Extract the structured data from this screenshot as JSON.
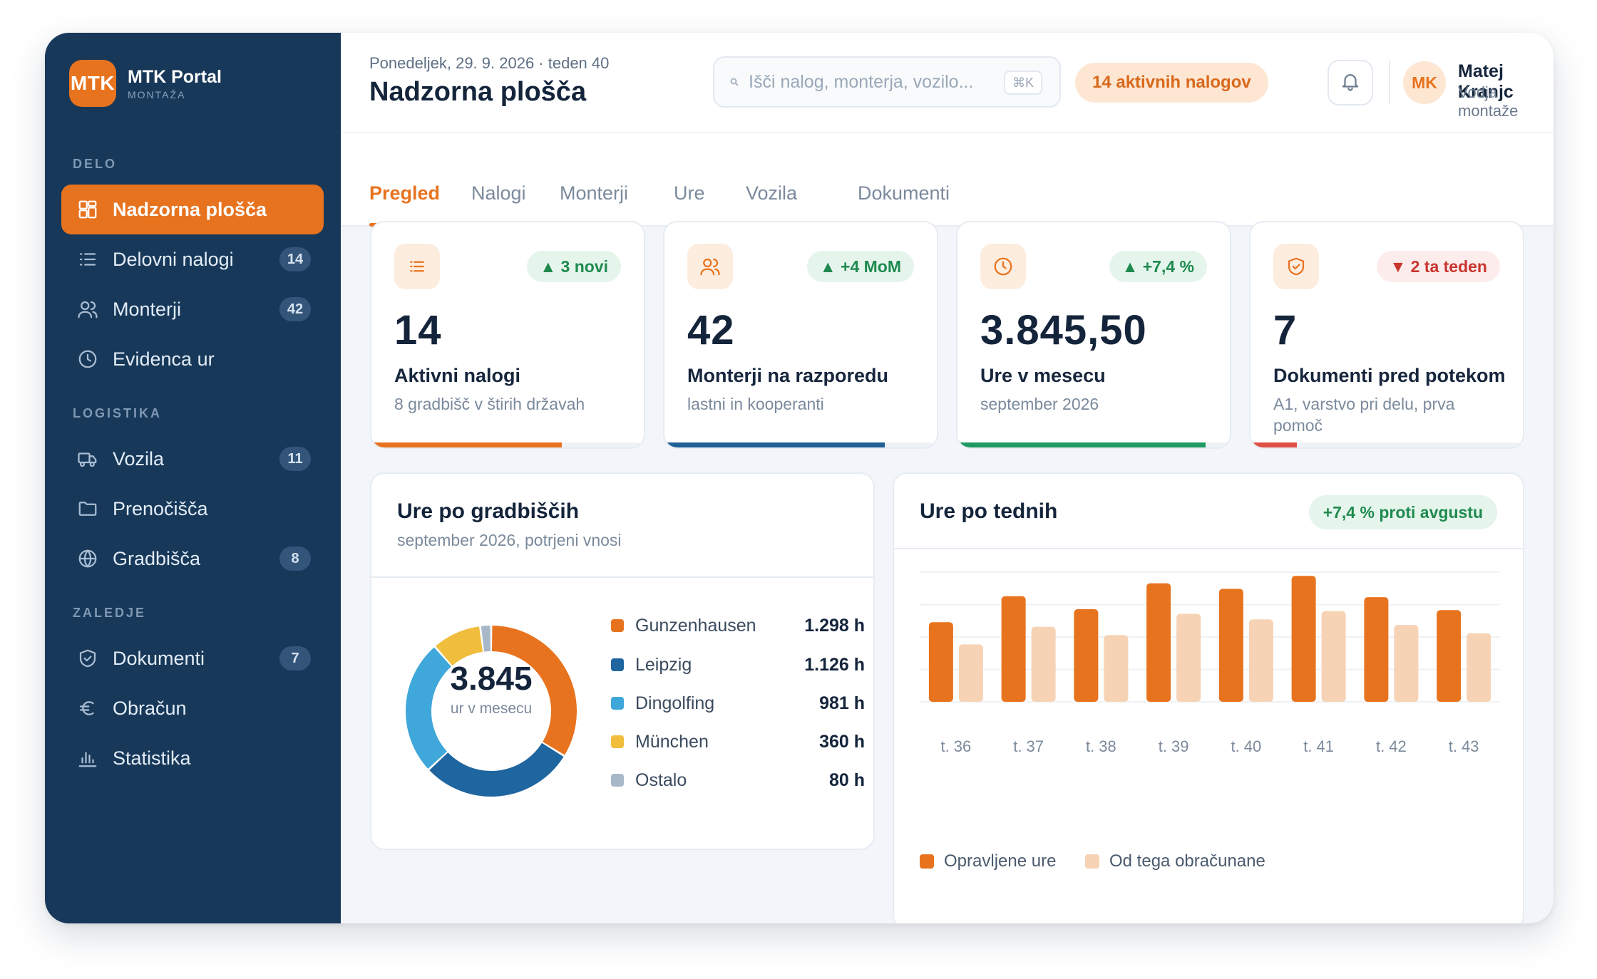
{
  "brand": {
    "logo_text": "MTK",
    "name": "MTK Portal",
    "subtitle": "MONTAŽA",
    "accent": "#e8731f",
    "sidebar_bg": "#173859"
  },
  "sidebar": {
    "sections": [
      {
        "label": "DELO"
      },
      {
        "label": "LOGISTIKA"
      },
      {
        "label": "ZALEDJE"
      }
    ],
    "items": [
      {
        "label": "Nadzorna plošča",
        "icon": "dashboard-icon",
        "badge": "",
        "active": true
      },
      {
        "label": "Delovni nalogi",
        "icon": "list-icon",
        "badge": "14"
      },
      {
        "label": "Monterji",
        "icon": "users-icon",
        "badge": "42"
      },
      {
        "label": "Evidenca ur",
        "icon": "clock-icon",
        "badge": ""
      },
      {
        "label": "Vozila",
        "icon": "truck-icon",
        "badge": "11"
      },
      {
        "label": "Prenočišča",
        "icon": "folder-icon",
        "badge": ""
      },
      {
        "label": "Gradbišča",
        "icon": "globe-icon",
        "badge": "8"
      },
      {
        "label": "Dokumenti",
        "icon": "shield-icon",
        "badge": "7"
      },
      {
        "label": "Obračun",
        "icon": "euro-icon",
        "badge": ""
      },
      {
        "label": "Statistika",
        "icon": "bar-chart-icon",
        "badge": ""
      }
    ]
  },
  "header": {
    "date_line": "Ponedeljek, 29. 9. 2026 · teden 40",
    "title": "Nadzorna plošča",
    "search_placeholder": "Išči nalog, monterja, vozilo...",
    "search_shortcut": "⌘K",
    "active_orders_pill": "14 aktivnih nalogov",
    "user_initials": "MK",
    "user_name": "Matej Kranjc",
    "user_role": "Vodja montaže"
  },
  "tabs": [
    {
      "label": "Pregled",
      "active": true
    },
    {
      "label": "Nalogi"
    },
    {
      "label": "Monterji"
    },
    {
      "label": "Ure"
    },
    {
      "label": "Vozila"
    },
    {
      "label": "Dokumenti"
    }
  ],
  "kpis": [
    {
      "icon": "list-icon",
      "badge": "▲ 3 novi",
      "trend": "up",
      "value": "14",
      "label": "Aktivni nalogi",
      "sub": "8 gradbišč v štirih državah",
      "progress": 0.7,
      "color": "#e8731f"
    },
    {
      "icon": "users-icon",
      "badge": "▲ +4 MoM",
      "trend": "up",
      "value": "42",
      "label": "Monterji na razporedu",
      "sub": "lastni in kooperanti",
      "progress": 0.81,
      "color": "#1f5f96"
    },
    {
      "icon": "clock-icon",
      "badge": "▲ +7,4 %",
      "trend": "up",
      "value": "3.845,50",
      "label": "Ure v mesecu",
      "sub": "september 2026",
      "progress": 0.91,
      "color": "#1f9a62"
    },
    {
      "icon": "shield-icon",
      "badge": "▼ 2 ta teden",
      "trend": "down",
      "value": "7",
      "label": "Dokumenti pred potekom",
      "sub": "A1, varstvo pri delu, prva pomoč",
      "progress": 0.17,
      "color": "#e04f43"
    }
  ],
  "donut_panel": {
    "title": "Ure po gradbiščih",
    "subtitle": "september 2026, potrjeni vnosi",
    "center_value": "3.845",
    "center_label": "ur v mesecu",
    "items": [
      {
        "name": "Gunzenhausen",
        "value": 1298,
        "label": "1.298 h",
        "color": "#e8731f"
      },
      {
        "name": "Leipzig",
        "value": 1126,
        "label": "1.126 h",
        "color": "#1f65a0"
      },
      {
        "name": "Dingolfing",
        "value": 981,
        "label": "981 h",
        "color": "#3fa7da"
      },
      {
        "name": "München",
        "value": 360,
        "label": "360 h",
        "color": "#f0bd3c"
      },
      {
        "name": "Ostalo",
        "value": 80,
        "label": "80 h",
        "color": "#a9b8c8"
      }
    ]
  },
  "bar_panel": {
    "title": "Ure po tednih",
    "trend_pill": "+7,4 % proti avgustu"
  },
  "chart_data": {
    "type": "bar",
    "categories": [
      "t. 36",
      "t. 37",
      "t. 38",
      "t. 39",
      "t. 40",
      "t. 41",
      "t. 42",
      "t. 43"
    ],
    "series": [
      {
        "name": "Opravljene ure",
        "color": "#e8731f",
        "values": [
          860,
          1140,
          1000,
          1280,
          1220,
          1360,
          1130,
          990
        ]
      },
      {
        "name": "Od tega obračunane",
        "color": "#f6d3b4",
        "values": [
          620,
          810,
          720,
          950,
          890,
          980,
          830,
          740
        ]
      }
    ],
    "ylim": [
      0,
      1400
    ],
    "grid": true,
    "legend": "bottom-left",
    "xlabel": "",
    "ylabel": ""
  }
}
